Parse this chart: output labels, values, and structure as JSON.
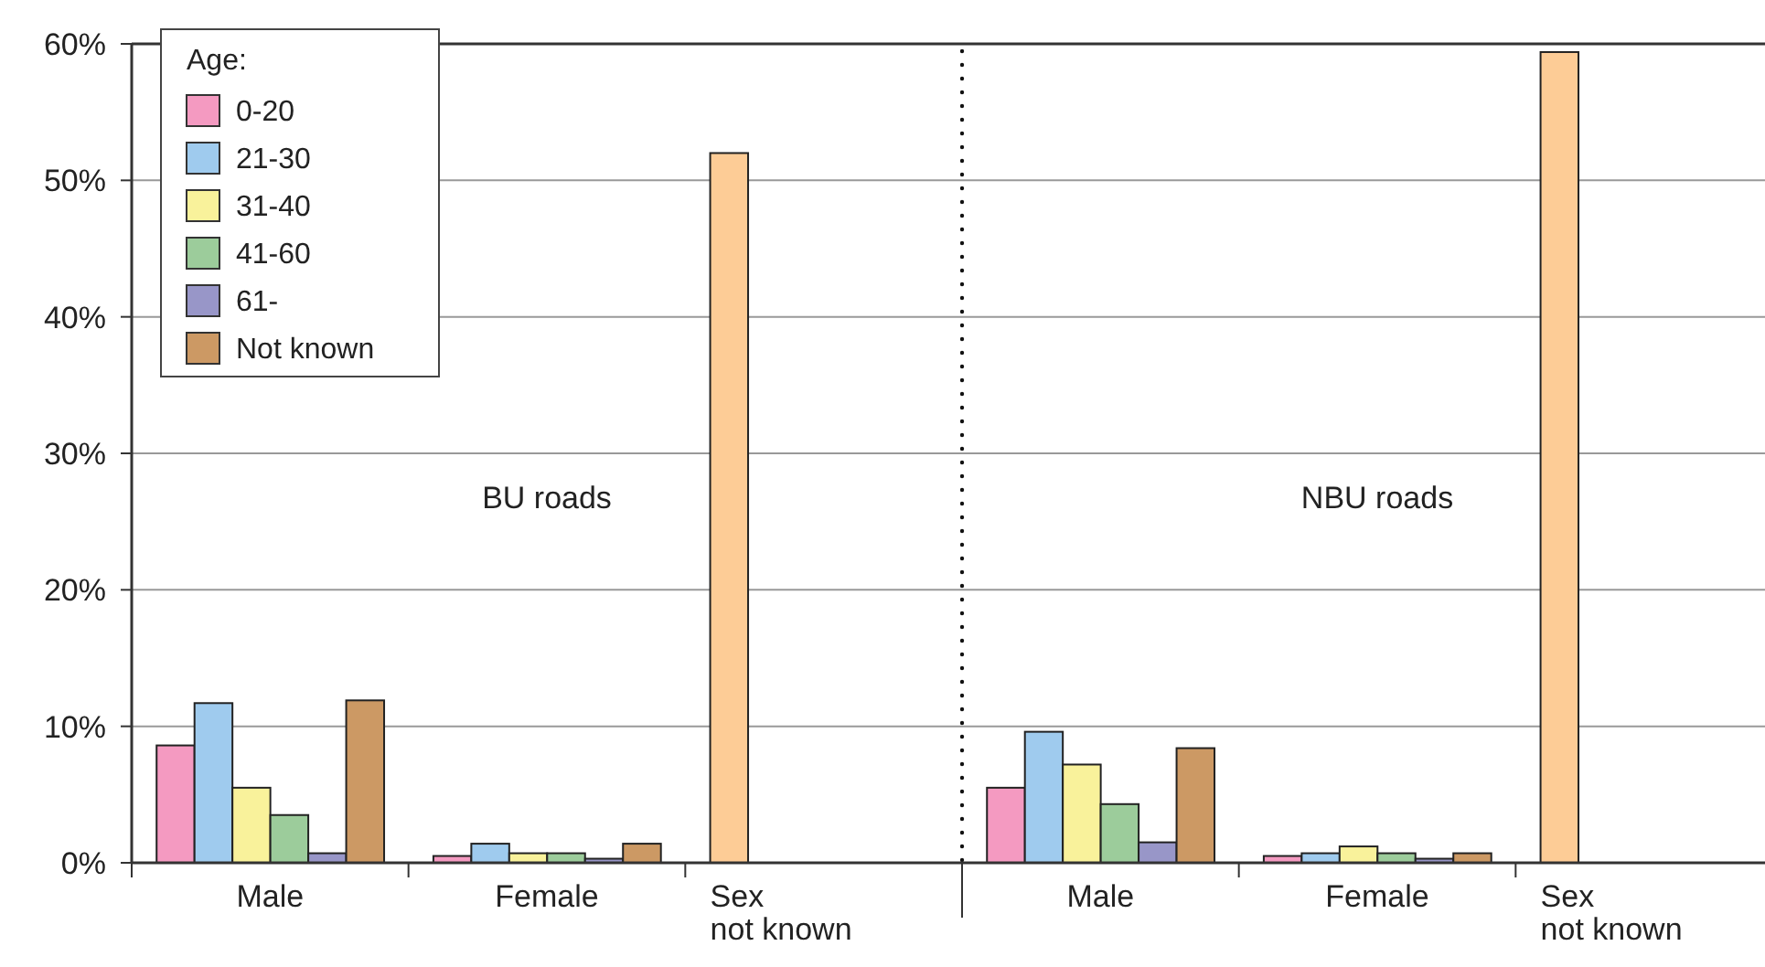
{
  "chart_data": {
    "type": "bar",
    "categories": [
      "Male",
      "Female",
      "Sex not known",
      "Male",
      "Female",
      "Sex not known"
    ],
    "series": [
      {
        "name": "0-20",
        "color": "#f49ac1",
        "values": [
          8.6,
          0.5,
          null,
          5.5,
          0.5,
          null
        ]
      },
      {
        "name": "21-30",
        "color": "#9fcbee",
        "values": [
          11.7,
          1.4,
          null,
          9.6,
          0.7,
          null
        ]
      },
      {
        "name": "31-40",
        "color": "#f9f29b",
        "values": [
          5.5,
          0.7,
          null,
          7.2,
          1.2,
          null
        ]
      },
      {
        "name": "41-60",
        "color": "#9ccc9b",
        "values": [
          3.5,
          0.7,
          null,
          4.3,
          0.7,
          null
        ]
      },
      {
        "name": "61-",
        "color": "#9896c8",
        "values": [
          0.7,
          0.3,
          null,
          1.5,
          0.3,
          null
        ]
      },
      {
        "name": "Not known",
        "color": "#cc9964",
        "values": [
          11.9,
          1.4,
          null,
          8.4,
          0.7,
          null
        ]
      },
      {
        "color": "#fdcc96",
        "values": [
          null,
          null,
          52,
          null,
          null,
          59.4
        ]
      }
    ],
    "legend_title": "Age:",
    "legend": "top left",
    "ylim": [
      0,
      60
    ],
    "yticks": [
      {
        "value": 0,
        "label": "0%"
      },
      {
        "value": 10,
        "label": "10%"
      },
      {
        "value": 20,
        "label": "20%"
      },
      {
        "value": 30,
        "label": "30%"
      },
      {
        "value": 40,
        "label": "40%"
      },
      {
        "value": 50,
        "label": "50%"
      },
      {
        "value": 60,
        "label": "60%"
      }
    ],
    "grid": "y",
    "annotations": [
      "BU roads",
      "NBU roads"
    ]
  }
}
